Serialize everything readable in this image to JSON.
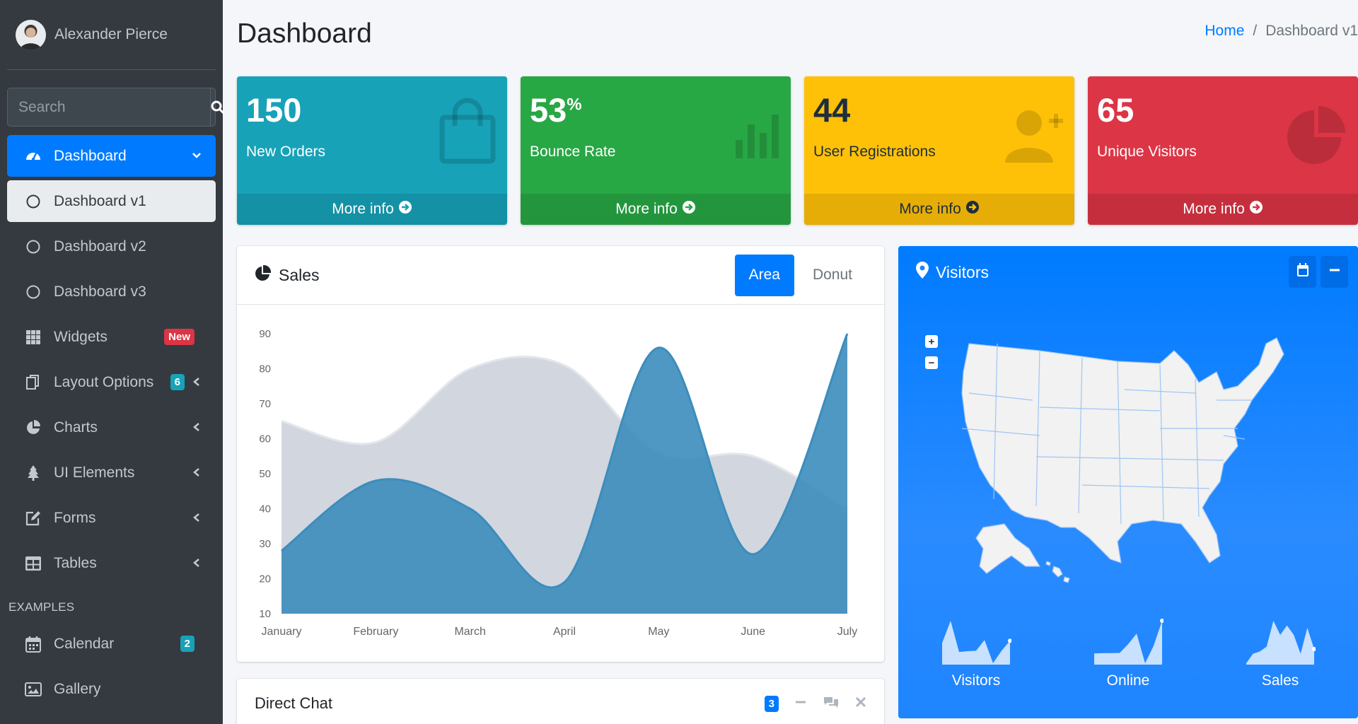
{
  "user": {
    "name": "Alexander Pierce"
  },
  "search": {
    "placeholder": "Search"
  },
  "sidebar": {
    "items": [
      {
        "label": "Dashboard"
      },
      {
        "label": "Dashboard v1"
      },
      {
        "label": "Dashboard v2"
      },
      {
        "label": "Dashboard v3"
      },
      {
        "label": "Widgets",
        "badge": "New"
      },
      {
        "label": "Layout Options",
        "badge": "6"
      },
      {
        "label": "Charts"
      },
      {
        "label": "UI Elements"
      },
      {
        "label": "Forms"
      },
      {
        "label": "Tables"
      }
    ],
    "header": "EXAMPLES",
    "examples": [
      {
        "label": "Calendar",
        "badge": "2"
      },
      {
        "label": "Gallery"
      }
    ]
  },
  "page": {
    "title": "Dashboard"
  },
  "breadcrumb": {
    "home": "Home",
    "sep": "/",
    "current": "Dashboard v1"
  },
  "stats": [
    {
      "value": "150",
      "suffix": "",
      "label": "New Orders",
      "more": "More info",
      "color": "#17a2b8"
    },
    {
      "value": "53",
      "suffix": "%",
      "label": "Bounce Rate",
      "more": "More info",
      "color": "#28a745"
    },
    {
      "value": "44",
      "suffix": "",
      "label": "User Registrations",
      "more": "More info",
      "color": "#ffc107"
    },
    {
      "value": "65",
      "suffix": "",
      "label": "Unique Visitors",
      "more": "More info",
      "color": "#dc3545"
    }
  ],
  "sales": {
    "title": "Sales",
    "tabs": [
      "Area",
      "Donut"
    ],
    "active_tab": "Area"
  },
  "chart_data": {
    "type": "area",
    "categories": [
      "January",
      "February",
      "March",
      "April",
      "May",
      "June",
      "July"
    ],
    "ylim": [
      10,
      90
    ],
    "yticks": [
      90,
      80,
      70,
      60,
      50,
      40,
      30,
      20,
      10
    ],
    "series": [
      {
        "values": [
          65,
          59,
          80,
          81,
          56,
          55,
          40
        ],
        "color": "#d2d6de"
      },
      {
        "values": [
          28,
          48,
          40,
          19,
          86,
          27,
          90
        ],
        "color": "#3c8dbc"
      }
    ]
  },
  "chat": {
    "title": "Direct Chat",
    "count": "3"
  },
  "visitors": {
    "title": "Visitors",
    "sparklines": [
      {
        "label": "Visitors",
        "values": [
          1000,
          1200,
          920,
          927,
          931,
          1027,
          819,
          930,
          1021
        ]
      },
      {
        "label": "Online",
        "values": [
          515,
          519,
          520,
          522,
          652,
          810,
          370,
          627,
          1000
        ]
      },
      {
        "label": "Sales",
        "values": [
          15,
          19,
          20,
          22,
          33,
          27,
          31,
          27,
          19,
          30,
          21
        ]
      }
    ]
  },
  "colors": {
    "primary": "#007bff",
    "sidebar": "#343a40"
  }
}
